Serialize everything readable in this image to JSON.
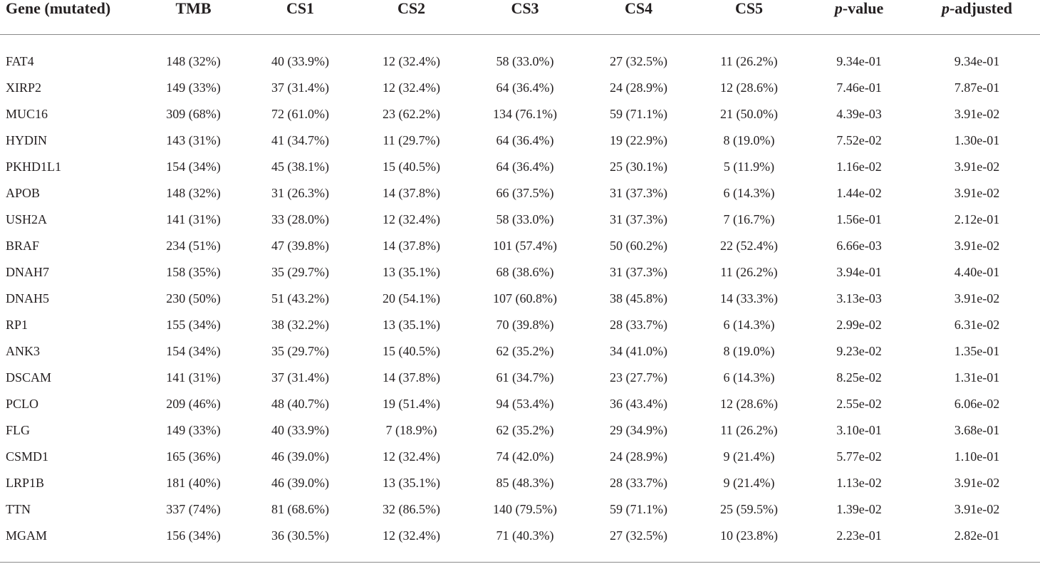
{
  "table": {
    "headers": {
      "gene": "Gene (mutated)",
      "tmb": "TMB",
      "cs1": "CS1",
      "cs2": "CS2",
      "cs3": "CS3",
      "cs4": "CS4",
      "cs5": "CS5",
      "p_prefix": "p",
      "p_suffix": "-value",
      "padj_prefix": "p",
      "padj_suffix": "-adjusted"
    },
    "rows": [
      [
        "FAT4",
        "148 (32%)",
        "40 (33.9%)",
        "12 (32.4%)",
        "58 (33.0%)",
        "27 (32.5%)",
        "11 (26.2%)",
        "9.34e-01",
        "9.34e-01"
      ],
      [
        "XIRP2",
        "149 (33%)",
        "37 (31.4%)",
        "12 (32.4%)",
        "64 (36.4%)",
        "24 (28.9%)",
        "12 (28.6%)",
        "7.46e-01",
        "7.87e-01"
      ],
      [
        "MUC16",
        "309 (68%)",
        "72 (61.0%)",
        "23 (62.2%)",
        "134 (76.1%)",
        "59 (71.1%)",
        "21 (50.0%)",
        "4.39e-03",
        "3.91e-02"
      ],
      [
        "HYDIN",
        "143 (31%)",
        "41 (34.7%)",
        "11 (29.7%)",
        "64 (36.4%)",
        "19 (22.9%)",
        "8 (19.0%)",
        "7.52e-02",
        "1.30e-01"
      ],
      [
        "PKHD1L1",
        "154 (34%)",
        "45 (38.1%)",
        "15 (40.5%)",
        "64 (36.4%)",
        "25 (30.1%)",
        "5 (11.9%)",
        "1.16e-02",
        "3.91e-02"
      ],
      [
        "APOB",
        "148 (32%)",
        "31 (26.3%)",
        "14 (37.8%)",
        "66 (37.5%)",
        "31 (37.3%)",
        "6 (14.3%)",
        "1.44e-02",
        "3.91e-02"
      ],
      [
        "USH2A",
        "141 (31%)",
        "33 (28.0%)",
        "12 (32.4%)",
        "58 (33.0%)",
        "31 (37.3%)",
        "7 (16.7%)",
        "1.56e-01",
        "2.12e-01"
      ],
      [
        "BRAF",
        "234 (51%)",
        "47 (39.8%)",
        "14 (37.8%)",
        "101 (57.4%)",
        "50 (60.2%)",
        "22 (52.4%)",
        "6.66e-03",
        "3.91e-02"
      ],
      [
        "DNAH7",
        "158 (35%)",
        "35 (29.7%)",
        "13 (35.1%)",
        "68 (38.6%)",
        "31 (37.3%)",
        "11 (26.2%)",
        "3.94e-01",
        "4.40e-01"
      ],
      [
        "DNAH5",
        "230 (50%)",
        "51 (43.2%)",
        "20 (54.1%)",
        "107 (60.8%)",
        "38 (45.8%)",
        "14 (33.3%)",
        "3.13e-03",
        "3.91e-02"
      ],
      [
        "RP1",
        "155 (34%)",
        "38 (32.2%)",
        "13 (35.1%)",
        "70 (39.8%)",
        "28 (33.7%)",
        "6 (14.3%)",
        "2.99e-02",
        "6.31e-02"
      ],
      [
        "ANK3",
        "154 (34%)",
        "35 (29.7%)",
        "15 (40.5%)",
        "62 (35.2%)",
        "34 (41.0%)",
        "8 (19.0%)",
        "9.23e-02",
        "1.35e-01"
      ],
      [
        "DSCAM",
        "141 (31%)",
        "37 (31.4%)",
        "14 (37.8%)",
        "61 (34.7%)",
        "23 (27.7%)",
        "6 (14.3%)",
        "8.25e-02",
        "1.31e-01"
      ],
      [
        "PCLO",
        "209 (46%)",
        "48 (40.7%)",
        "19 (51.4%)",
        "94 (53.4%)",
        "36 (43.4%)",
        "12 (28.6%)",
        "2.55e-02",
        "6.06e-02"
      ],
      [
        "FLG",
        "149 (33%)",
        "40 (33.9%)",
        "7 (18.9%)",
        "62 (35.2%)",
        "29 (34.9%)",
        "11 (26.2%)",
        "3.10e-01",
        "3.68e-01"
      ],
      [
        "CSMD1",
        "165 (36%)",
        "46 (39.0%)",
        "12 (32.4%)",
        "74 (42.0%)",
        "24 (28.9%)",
        "9 (21.4%)",
        "5.77e-02",
        "1.10e-01"
      ],
      [
        "LRP1B",
        "181 (40%)",
        "46 (39.0%)",
        "13 (35.1%)",
        "85 (48.3%)",
        "28 (33.7%)",
        "9 (21.4%)",
        "1.13e-02",
        "3.91e-02"
      ],
      [
        "TTN",
        "337 (74%)",
        "81 (68.6%)",
        "32 (86.5%)",
        "140 (79.5%)",
        "59 (71.1%)",
        "25 (59.5%)",
        "1.39e-02",
        "3.91e-02"
      ],
      [
        "MGAM",
        "156 (34%)",
        "36 (30.5%)",
        "12 (32.4%)",
        "71 (40.3%)",
        "27 (32.5%)",
        "10 (23.8%)",
        "2.23e-01",
        "2.82e-01"
      ]
    ]
  }
}
